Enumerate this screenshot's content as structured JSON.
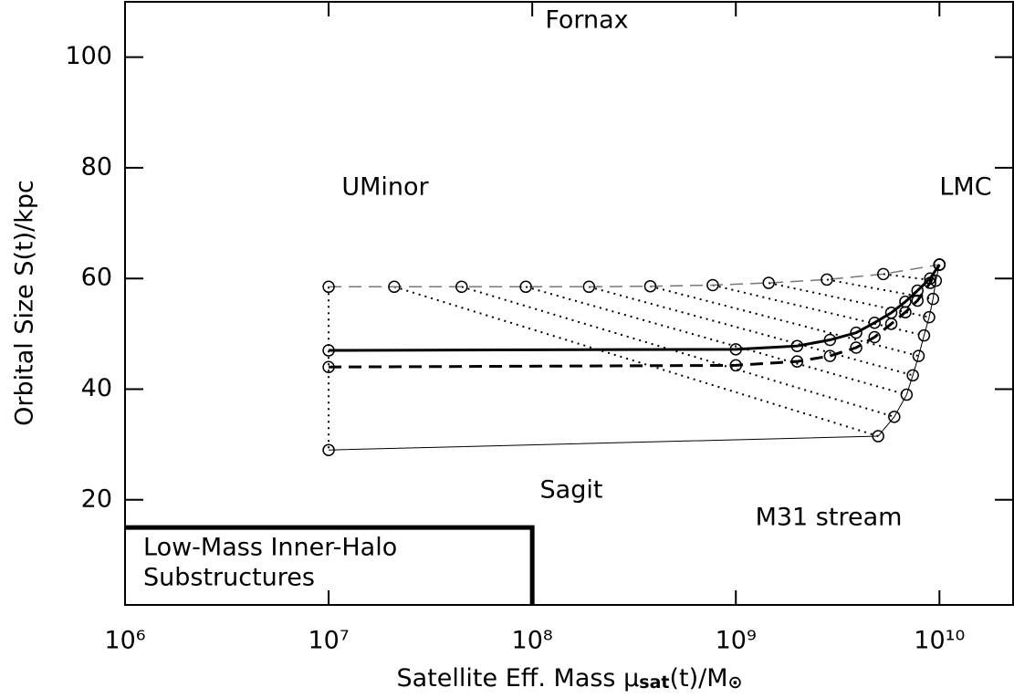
{
  "chart_data": {
    "type": "line",
    "x_label": [
      "Satellite Eff. Mass μ",
      "sat",
      "(t)/M",
      "⊙"
    ],
    "y_label": "Orbital Size S(t)/kpc",
    "log_x": true,
    "xlim": [
      1000000,
      23000000000
    ],
    "ylim": [
      1,
      110
    ],
    "xticks": [
      {
        "value": 1000000,
        "label": "10⁶"
      },
      {
        "value": 10000000,
        "label": "10⁷"
      },
      {
        "value": 100000000,
        "label": "10⁸"
      },
      {
        "value": 1000000000,
        "label": "10⁹"
      },
      {
        "value": 10000000000,
        "label": "10¹⁰"
      }
    ],
    "yticks": [
      20,
      40,
      60,
      80,
      100
    ],
    "series": [
      {
        "color": "#777777",
        "line_style": "dashed",
        "line_width": 1.5,
        "x": [
          10000000,
          21000000,
          45000000,
          93000000,
          190000000,
          380000000,
          770000000,
          1450000000,
          2800000000,
          5300000000,
          10000000000
        ],
        "values": [
          58.5,
          58.5,
          58.5,
          58.5,
          58.5,
          58.6,
          58.8,
          59.2,
          59.8,
          60.8,
          62.5
        ]
      },
      {
        "color": "#000000",
        "line_style": "solid",
        "line_width": 3,
        "x": [
          10000000,
          1000000000,
          2000000000,
          2900000000,
          3900000000,
          4800000000,
          5800000000,
          6800000000,
          7800000000,
          9000000000,
          10000000000
        ],
        "values": [
          47,
          47.2,
          47.8,
          48.9,
          50.2,
          52,
          53.8,
          55.8,
          57.8,
          60,
          62.5
        ]
      },
      {
        "color": "#000000",
        "line_style": "dashed",
        "line_width": 3,
        "x": [
          10000000,
          1000000000,
          2000000000,
          2900000000,
          3900000000,
          4800000000,
          5800000000,
          6800000000,
          7800000000,
          9000000000,
          10000000000
        ],
        "values": [
          44,
          44.3,
          45,
          46,
          47.5,
          49.4,
          51.8,
          53.9,
          56,
          59.2,
          62.5
        ]
      },
      {
        "color": "#000000",
        "line_style": "solid",
        "line_width": 1,
        "x": [
          10000000,
          5000000000,
          6000000000,
          6900000000,
          7400000000,
          7900000000,
          8400000000,
          8900000000,
          9300000000,
          9600000000,
          10000000000
        ],
        "values": [
          29,
          31.5,
          35,
          39,
          42.5,
          46,
          49.7,
          53,
          56.3,
          59.6,
          62.5
        ]
      }
    ],
    "annotations": [
      "Fornax",
      "UMinor",
      "LMC",
      "Sagit",
      "M31 stream"
    ],
    "region": {
      "x": 100000000,
      "y": 15,
      "lines": [
        "Low-Mass Inner-Halo",
        "Substructures"
      ]
    }
  }
}
